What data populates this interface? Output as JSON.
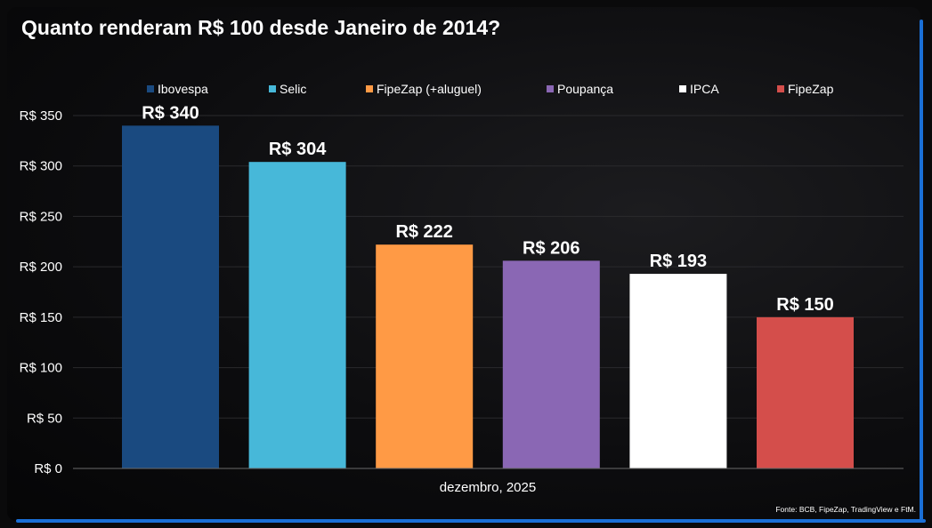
{
  "source_note": "Fonte: BCB, FipeZap, TradingView e FtM.",
  "chart_data": {
    "type": "bar",
    "title": "Quanto renderam R$ 100 desde Janeiro de 2014?",
    "xlabel": "dezembro, 2025",
    "ylabel": "",
    "ylim": [
      0,
      350
    ],
    "yticks": [
      0,
      50,
      100,
      150,
      200,
      250,
      300,
      350
    ],
    "ytick_labels": [
      "R$ 0",
      "R$ 50",
      "R$ 100",
      "R$ 150",
      "R$ 200",
      "R$ 250",
      "R$ 300",
      "R$ 350"
    ],
    "grid": true,
    "legend_position": "top",
    "series": [
      {
        "name": "Ibovespa",
        "value": 340,
        "label": "R$ 340",
        "color": "#1a4a80"
      },
      {
        "name": "Selic",
        "value": 304,
        "label": "R$ 304",
        "color": "#47b8d9"
      },
      {
        "name": "FipeZap (+aluguel)",
        "value": 222,
        "label": "R$ 222",
        "color": "#ff9a45"
      },
      {
        "name": "Poupança",
        "value": 206,
        "label": "R$ 206",
        "color": "#8a67b4"
      },
      {
        "name": "IPCA",
        "value": 193,
        "label": "R$ 193",
        "color": "#ffffff"
      },
      {
        "name": "FipeZap",
        "value": 150,
        "label": "R$ 150",
        "color": "#d44e4b"
      }
    ]
  }
}
